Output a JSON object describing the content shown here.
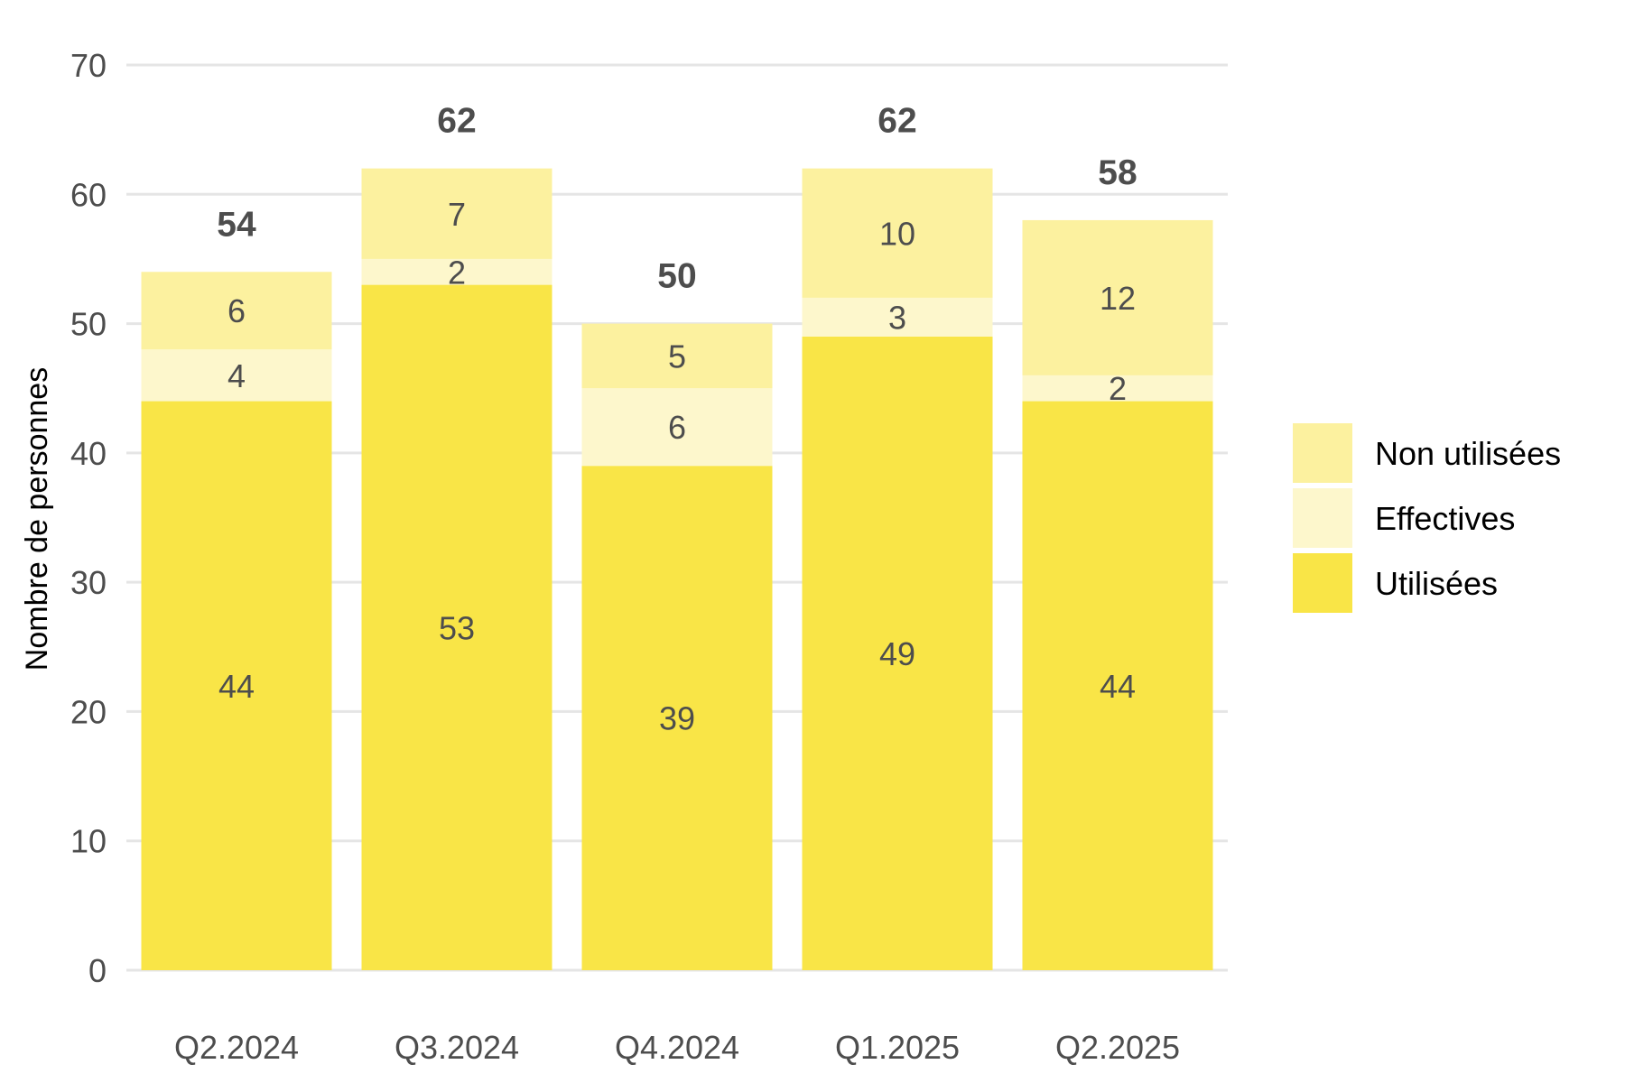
{
  "chart_data": {
    "type": "bar",
    "stacked": true,
    "categories": [
      "Q2.2024",
      "Q3.2024",
      "Q4.2024",
      "Q1.2025",
      "Q2.2025"
    ],
    "series": [
      {
        "name": "Utilisées",
        "values": [
          44,
          53,
          39,
          49,
          44
        ],
        "color": "#f9e547"
      },
      {
        "name": "Effectives",
        "values": [
          4,
          2,
          6,
          3,
          2
        ],
        "color": "#fdf7cc"
      },
      {
        "name": "Non utilisées",
        "values": [
          6,
          7,
          5,
          10,
          12
        ],
        "color": "#fcf19f"
      }
    ],
    "totals": [
      54,
      62,
      50,
      62,
      58
    ],
    "title": "",
    "xlabel": "",
    "ylabel": "Nombre de personnes",
    "ylim": [
      0,
      70
    ],
    "yticks": [
      0,
      10,
      20,
      30,
      40,
      50,
      60,
      70
    ],
    "grid": "horizontal",
    "legend": {
      "position": "right",
      "order": [
        "Non utilisées",
        "Effectives",
        "Utilisées"
      ]
    }
  }
}
